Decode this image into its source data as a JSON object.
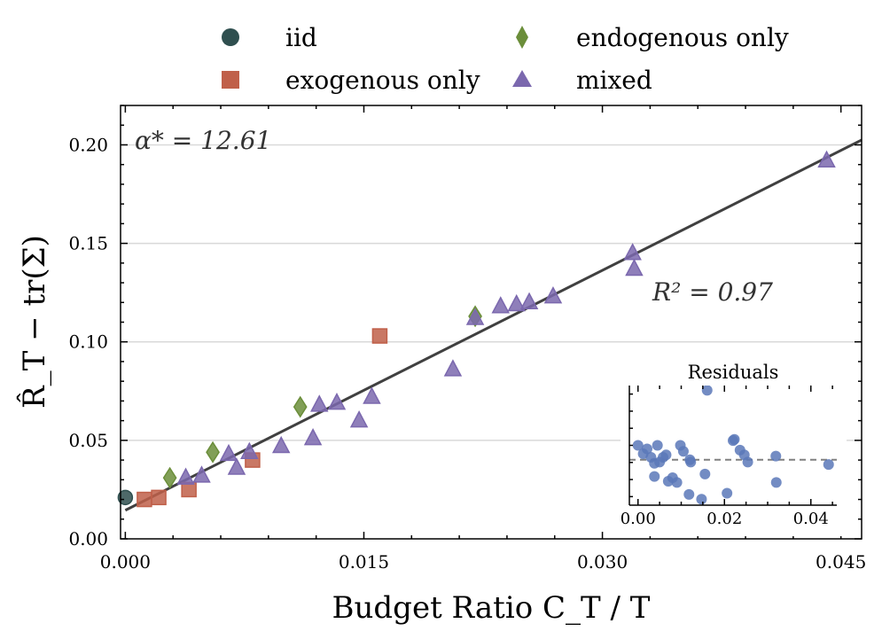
{
  "chart_data": {
    "type": "scatter",
    "xlabel": "Budget Ratio C_T / T",
    "ylabel": "R̂_T − tr(Σ)",
    "xlim": [
      -0.0003,
      0.0463
    ],
    "ylim": [
      0.0,
      0.22
    ],
    "x_ticks": [
      0.0,
      0.015,
      0.03,
      0.045
    ],
    "x_tick_labels": [
      "0.000",
      "0.015",
      "0.030",
      "0.045"
    ],
    "y_ticks": [
      0.0,
      0.05,
      0.1,
      0.15,
      0.2
    ],
    "y_tick_labels": [
      "0.00",
      "0.05",
      "0.10",
      "0.15",
      "0.20"
    ],
    "grid": "horizontal",
    "legend_position": "top",
    "legend_order": [
      "iid",
      "endogenous only",
      "exogenous only",
      "mixed"
    ],
    "series": [
      {
        "name": "iid",
        "marker": "circle",
        "color": "#2f4f4f",
        "points": [
          [
            0.0,
            0.021
          ]
        ]
      },
      {
        "name": "exogenous only",
        "marker": "square",
        "color": "#c0604a",
        "points": [
          [
            0.0012,
            0.02
          ],
          [
            0.0021,
            0.021
          ],
          [
            0.004,
            0.025
          ],
          [
            0.008,
            0.04
          ],
          [
            0.016,
            0.103
          ]
        ]
      },
      {
        "name": "endogenous only",
        "marker": "diamond",
        "color": "#6b8e3a",
        "points": [
          [
            0.0028,
            0.031
          ],
          [
            0.0055,
            0.044
          ],
          [
            0.011,
            0.067
          ],
          [
            0.022,
            0.113
          ]
        ]
      },
      {
        "name": "mixed",
        "marker": "triangle",
        "color": "#7b68ae",
        "points": [
          [
            0.0038,
            0.031
          ],
          [
            0.0048,
            0.032
          ],
          [
            0.0065,
            0.043
          ],
          [
            0.007,
            0.036
          ],
          [
            0.0078,
            0.044
          ],
          [
            0.0098,
            0.047
          ],
          [
            0.0118,
            0.051
          ],
          [
            0.0122,
            0.068
          ],
          [
            0.0133,
            0.069
          ],
          [
            0.0147,
            0.06
          ],
          [
            0.0155,
            0.072
          ],
          [
            0.0206,
            0.086
          ],
          [
            0.022,
            0.112
          ],
          [
            0.0236,
            0.118
          ],
          [
            0.0246,
            0.119
          ],
          [
            0.0254,
            0.12
          ],
          [
            0.0269,
            0.123
          ],
          [
            0.0319,
            0.145
          ],
          [
            0.032,
            0.137
          ],
          [
            0.0441,
            0.192
          ]
        ]
      }
    ],
    "fit_line": {
      "intercept": 0.0145,
      "slope": 4.06,
      "color": "#404040"
    },
    "annotations": {
      "alpha": "α* = 12.61",
      "r2": "R² = 0.97"
    },
    "inset": {
      "title": "Residuals",
      "x_ticks": [
        0.0,
        0.02,
        0.04
      ],
      "x_tick_labels": [
        "0.00",
        "0.02",
        "0.04"
      ],
      "xlim": [
        -0.002,
        0.046
      ],
      "ylim": [
        0.0,
        1.0
      ],
      "zero_line": 0.38,
      "points": [
        [
          0.0,
          0.5
        ],
        [
          0.0012,
          0.43
        ],
        [
          0.0021,
          0.47
        ],
        [
          0.003,
          0.4
        ],
        [
          0.0038,
          0.35
        ],
        [
          0.0045,
          0.5
        ],
        [
          0.005,
          0.36
        ],
        [
          0.0058,
          0.4
        ],
        [
          0.0038,
          0.24
        ],
        [
          0.0065,
          0.42
        ],
        [
          0.007,
          0.2
        ],
        [
          0.008,
          0.23
        ],
        [
          0.009,
          0.19
        ],
        [
          0.0098,
          0.5
        ],
        [
          0.0105,
          0.45
        ],
        [
          0.0118,
          0.09
        ],
        [
          0.012,
          0.38
        ],
        [
          0.0122,
          0.36
        ],
        [
          0.0147,
          0.05
        ],
        [
          0.0155,
          0.26
        ],
        [
          0.016,
          0.96
        ],
        [
          0.0206,
          0.1
        ],
        [
          0.022,
          0.54
        ],
        [
          0.0223,
          0.55
        ],
        [
          0.0236,
          0.46
        ],
        [
          0.0246,
          0.42
        ],
        [
          0.0254,
          0.36
        ],
        [
          0.0319,
          0.41
        ],
        [
          0.032,
          0.19
        ],
        [
          0.0441,
          0.34
        ]
      ]
    }
  }
}
